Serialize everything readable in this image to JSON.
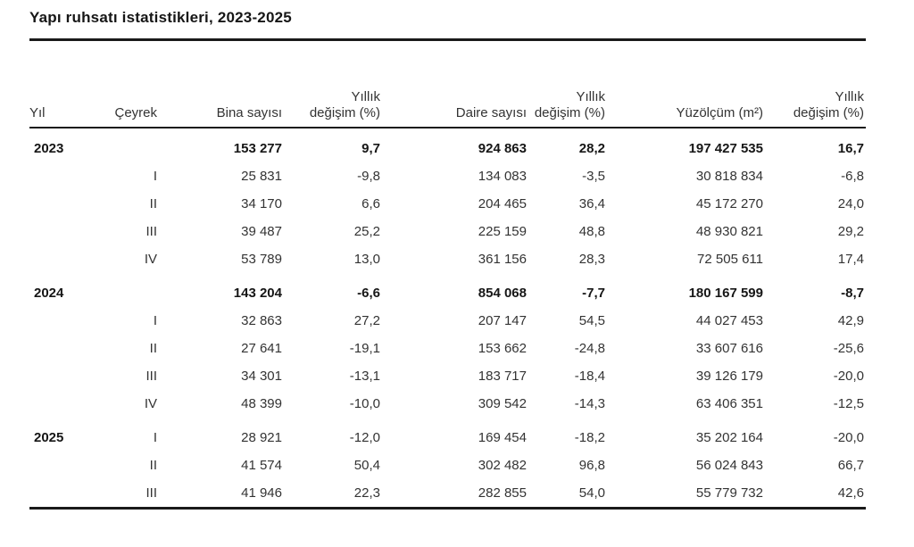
{
  "page_title": "Yapı ruhsatı istatistikleri, 2023-2025",
  "table": {
    "columns": [
      {
        "top": "",
        "label": "Yıl",
        "align": "left"
      },
      {
        "top": "",
        "label": "Çeyrek",
        "align": "right"
      },
      {
        "top": "",
        "label": "Bina sayısı",
        "align": "right"
      },
      {
        "top": "Yıllık",
        "label": "değişim (%)",
        "align": "right"
      },
      {
        "top": "",
        "label": "Daire sayısı",
        "align": "right"
      },
      {
        "top": "Yıllık",
        "label": "değişim (%)",
        "align": "right"
      },
      {
        "top": "",
        "label": "Yüzölçüm (m²)",
        "align": "right"
      },
      {
        "top": "Yıllık",
        "label": "değişim (%)",
        "align": "right"
      }
    ],
    "rows": [
      {
        "cells": [
          "2023",
          "",
          "153 277",
          "9,7",
          "924 863",
          "28,2",
          "197 427 535",
          "16,7"
        ],
        "bold": "row",
        "group_start": true
      },
      {
        "cells": [
          "",
          "I",
          "25 831",
          "-9,8",
          "134 083",
          "-3,5",
          "30 818 834",
          "-6,8"
        ],
        "bold": "none",
        "group_start": false
      },
      {
        "cells": [
          "",
          "II",
          "34 170",
          "6,6",
          "204 465",
          "36,4",
          "45 172 270",
          "24,0"
        ],
        "bold": "none",
        "group_start": false
      },
      {
        "cells": [
          "",
          "III",
          "39 487",
          "25,2",
          "225 159",
          "48,8",
          "48 930 821",
          "29,2"
        ],
        "bold": "none",
        "group_start": false
      },
      {
        "cells": [
          "",
          "IV",
          "53 789",
          "13,0",
          "361 156",
          "28,3",
          "72 505 611",
          "17,4"
        ],
        "bold": "none",
        "group_start": false
      },
      {
        "cells": [
          "2024",
          "",
          "143 204",
          "-6,6",
          "854 068",
          "-7,7",
          "180 167 599",
          "-8,7"
        ],
        "bold": "row",
        "group_start": true
      },
      {
        "cells": [
          "",
          "I",
          "32 863",
          "27,2",
          "207 147",
          "54,5",
          "44 027 453",
          "42,9"
        ],
        "bold": "none",
        "group_start": false
      },
      {
        "cells": [
          "",
          "II",
          "27 641",
          "-19,1",
          "153 662",
          "-24,8",
          "33 607 616",
          "-25,6"
        ],
        "bold": "none",
        "group_start": false
      },
      {
        "cells": [
          "",
          "III",
          "34 301",
          "-13,1",
          "183 717",
          "-18,4",
          "39 126 179",
          "-20,0"
        ],
        "bold": "none",
        "group_start": false
      },
      {
        "cells": [
          "",
          "IV",
          "48 399",
          "-10,0",
          "309 542",
          "-14,3",
          "63 406 351",
          "-12,5"
        ],
        "bold": "none",
        "group_start": false
      },
      {
        "cells": [
          "2025",
          "I",
          "28 921",
          "-12,0",
          "169 454",
          "-18,2",
          "35 202 164",
          "-20,0"
        ],
        "bold": "year",
        "group_start": true
      },
      {
        "cells": [
          "",
          "II",
          "41 574",
          "50,4",
          "302 482",
          "96,8",
          "56 024 843",
          "66,7"
        ],
        "bold": "none",
        "group_start": false
      },
      {
        "cells": [
          "",
          "III",
          "41 946",
          "22,3",
          "282 855",
          "54,0",
          "55 779 732",
          "42,6"
        ],
        "bold": "none",
        "group_start": false
      }
    ]
  },
  "colors": {
    "text": "#333333",
    "emphasis": "#161616",
    "rule": "#1a1a1a",
    "background": "#ffffff"
  }
}
